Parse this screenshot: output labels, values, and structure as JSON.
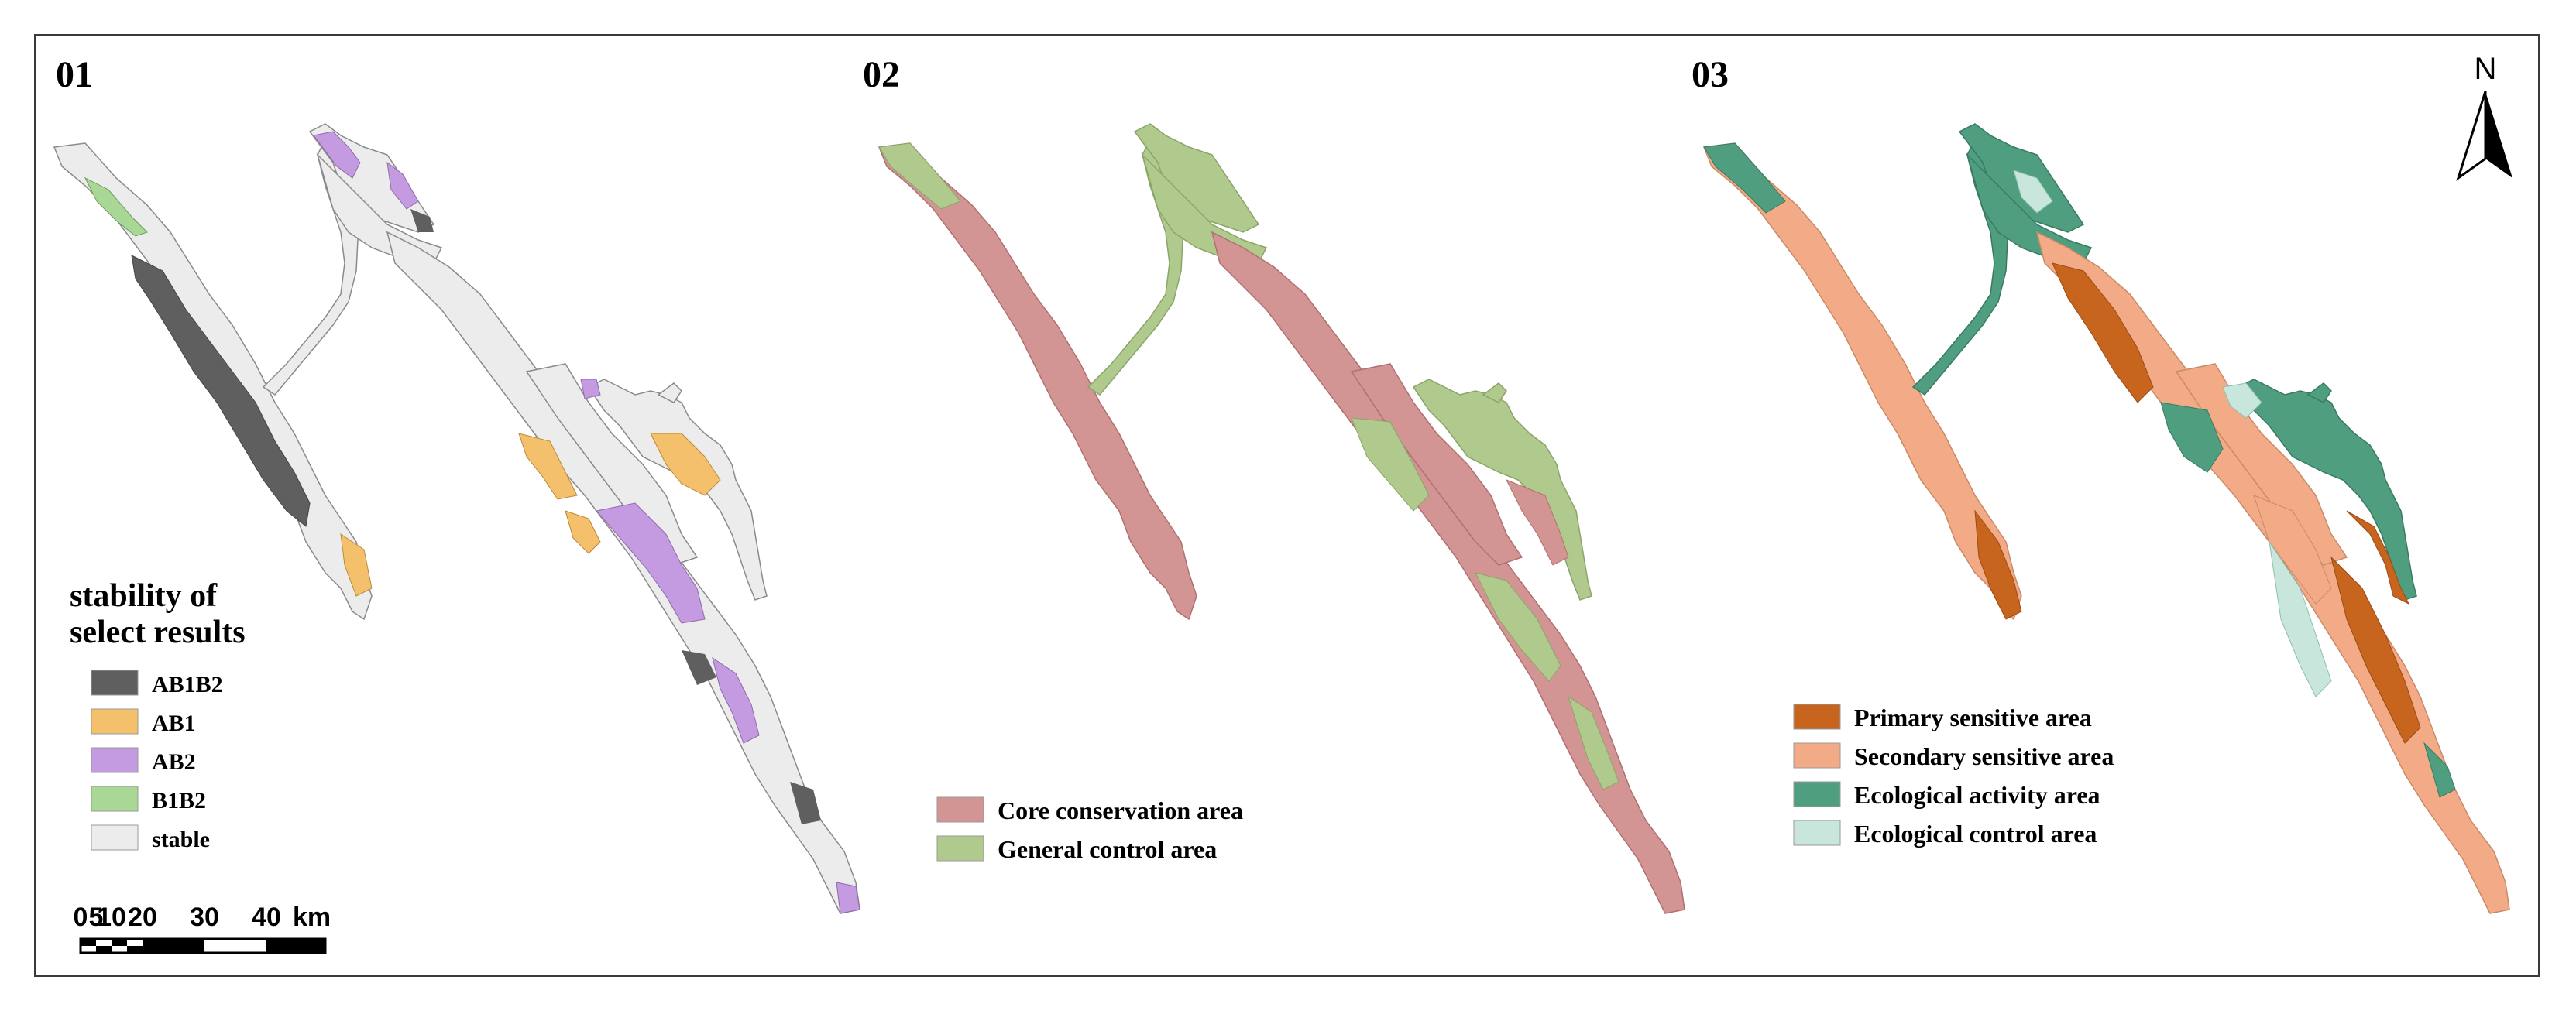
{
  "panels": [
    {
      "number": "01",
      "legend": {
        "title_line1": "stability of",
        "title_line2": "select results",
        "items": [
          {
            "label": "AB1B2",
            "color": "#5f5f5f"
          },
          {
            "label": "AB1",
            "color": "#f5c06c"
          },
          {
            "label": "AB2",
            "color": "#c49be0"
          },
          {
            "label": "B1B2",
            "color": "#a9d796"
          },
          {
            "label": "stable",
            "color": "#ececec"
          }
        ]
      },
      "scale_bar": {
        "ticks": [
          "0",
          "5",
          "10",
          "20",
          "30",
          "40"
        ],
        "unit": "km"
      }
    },
    {
      "number": "02",
      "legend": {
        "items": [
          {
            "label": "Core conservation area",
            "color": "#d39494"
          },
          {
            "label": "General control area",
            "color": "#b0c98c"
          }
        ]
      }
    },
    {
      "number": "03",
      "legend": {
        "items": [
          {
            "label": "Primary sensitive area",
            "color": "#c7651f"
          },
          {
            "label": "Secondary sensitive area",
            "color": "#f2ab86"
          },
          {
            "label": "Ecological activity area",
            "color": "#4f9e80"
          },
          {
            "label": "Ecological control area",
            "color": "#c8e6dc"
          }
        ]
      }
    }
  ],
  "north_arrow": {
    "label": "N"
  }
}
